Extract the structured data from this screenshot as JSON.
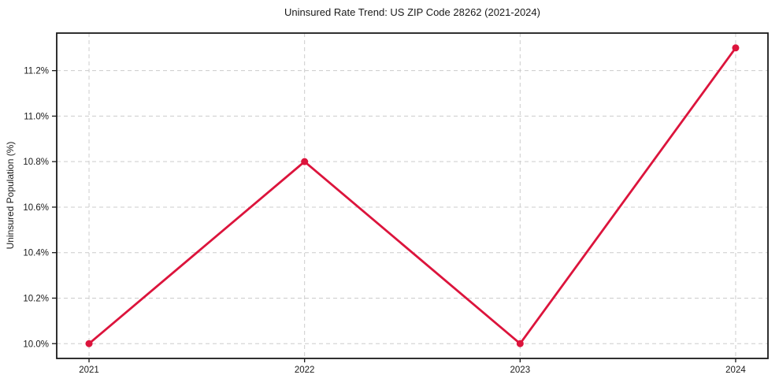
{
  "figure": {
    "background": "#ffffff"
  },
  "chart_data": {
    "type": "line",
    "title": "Uninsured Rate Trend: US ZIP Code 28262 (2021-2024)",
    "xlabel": "",
    "ylabel": "Uninsured Population (%)",
    "x": [
      2021,
      2022,
      2023,
      2024
    ],
    "x_tick_labels": [
      "2021",
      "2022",
      "2023",
      "2024"
    ],
    "series": [
      {
        "name": "uninsured-rate",
        "values": [
          10.0,
          10.8,
          10.0,
          11.3
        ],
        "color": "#dc143c",
        "marker": "circle"
      }
    ],
    "yticks": [
      10.0,
      10.2,
      10.4,
      10.6,
      10.8,
      11.0,
      11.2
    ],
    "y_tick_labels": [
      "10.0%",
      "10.2%",
      "10.4%",
      "10.6%",
      "10.8%",
      "11.0%",
      "11.2%"
    ],
    "xlim": [
      2020.85,
      2024.15
    ],
    "ylim": [
      9.935,
      11.365
    ],
    "grid": true,
    "grid_style": "dashed",
    "grid_color": "#cccccc",
    "axis_color": "#1a1a1a",
    "legend": "none"
  }
}
